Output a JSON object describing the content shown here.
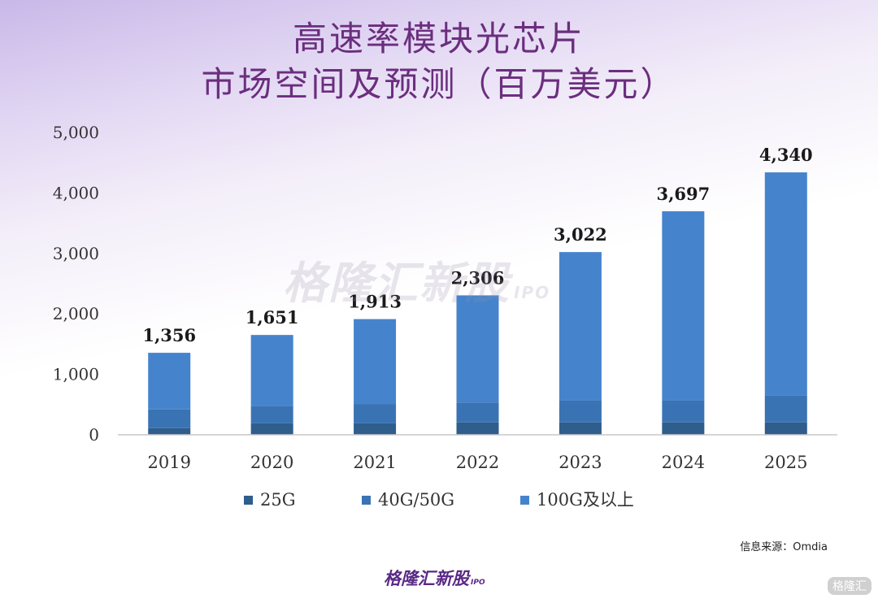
{
  "title": {
    "line1": "高速率模块光芯片",
    "line2": "市场空间及预测（百万美元）"
  },
  "watermark": {
    "text": "格隆汇新股",
    "sub": "IPO"
  },
  "source": "信息来源：Omdia",
  "footer": {
    "logo": "格隆汇新股",
    "sub": "IPO"
  },
  "corner_mark": "格隆汇",
  "chart_data": {
    "type": "bar",
    "stacked": true,
    "categories": [
      "2019",
      "2020",
      "2021",
      "2022",
      "2023",
      "2024",
      "2025"
    ],
    "series": [
      {
        "name": "25G",
        "color": "#2f5d8c",
        "values": [
          110,
          190,
          190,
          205,
          205,
          205,
          205
        ]
      },
      {
        "name": "40G/50G",
        "color": "#3a73b3",
        "values": [
          310,
          290,
          320,
          330,
          360,
          360,
          450
        ]
      },
      {
        "name": "100G及以上",
        "color": "#4584cc",
        "values": [
          936,
          1171,
          1403,
          1771,
          2457,
          3132,
          3685
        ]
      }
    ],
    "totals": [
      1356,
      1651,
      1913,
      2306,
      3022,
      3697,
      4340
    ],
    "total_labels": [
      "1,356",
      "1,651",
      "1,913",
      "2,306",
      "3,022",
      "3,697",
      "4,340"
    ],
    "ylim": [
      0,
      5000
    ],
    "yticks": [
      0,
      1000,
      2000,
      3000,
      4000,
      5000
    ],
    "ytick_labels": [
      "0",
      "1,000",
      "2,000",
      "3,000",
      "4,000",
      "5,000"
    ],
    "grid": false,
    "legend_position": "bottom"
  }
}
